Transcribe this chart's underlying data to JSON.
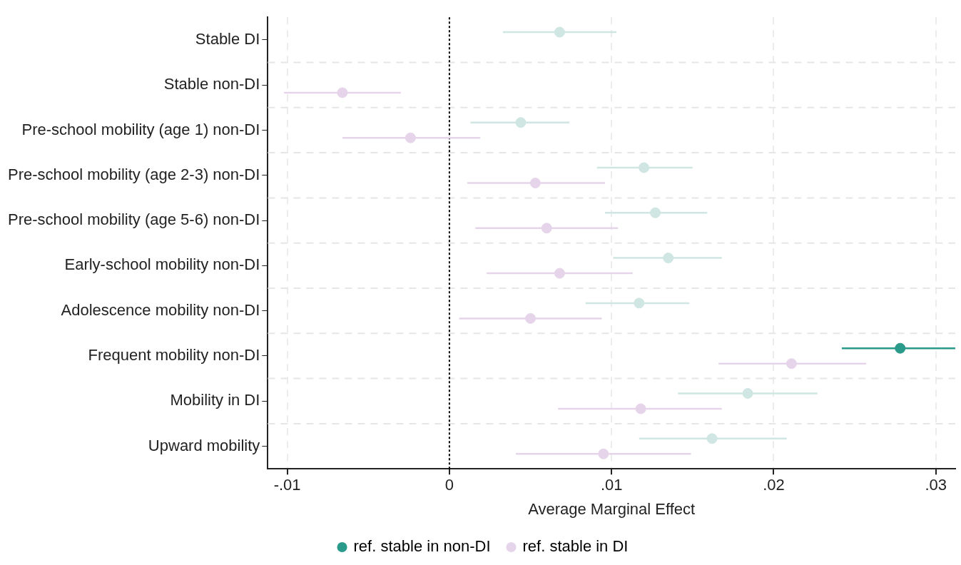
{
  "chart_data": {
    "type": "scatter",
    "orientation": "horizontal",
    "xlabel": "Average Marginal Effect",
    "categories": [
      "Stable DI",
      "Stable non-DI",
      "Pre-school mobility (age 1) non-DI",
      "Pre-school mobility (age 2-3) non-DI",
      "Pre-school mobility (age 5-6) non-DI",
      "Early-school mobility non-DI",
      "Adolescence mobility non-DI",
      "Frequent mobility non-DI",
      "Mobility in DI",
      "Upward mobility"
    ],
    "series": [
      {
        "name": "ref. stable in non-DI",
        "color": "#2a9a8a",
        "colors": [
          "#cfe6e2",
          null,
          "#cfe6e2",
          "#cfe6e2",
          "#cfe6e2",
          "#cfe6e2",
          "#cfe6e2",
          "#2a9a8a",
          "#cfe6e2",
          "#cfe6e2"
        ],
        "values": [
          0.0068,
          null,
          0.0044,
          0.012,
          0.0127,
          0.0135,
          0.0117,
          0.0278,
          0.0184,
          0.0162
        ],
        "errors": [
          [
            0.0033,
            0.0103
          ],
          null,
          [
            0.0013,
            0.0074
          ],
          [
            0.0091,
            0.015
          ],
          [
            0.0096,
            0.0159
          ],
          [
            0.0101,
            0.0168
          ],
          [
            0.0084,
            0.0148
          ],
          [
            0.0242,
            0.0312
          ],
          [
            0.0141,
            0.0227
          ],
          [
            0.0117,
            0.0208
          ]
        ]
      },
      {
        "name": "ref. stable in DI",
        "color": "#e6d5ea",
        "values": [
          null,
          -0.0066,
          -0.0024,
          0.0053,
          0.006,
          0.0068,
          0.005,
          0.0211,
          0.0118,
          0.0095
        ],
        "errors": [
          null,
          [
            -0.0102,
            -0.003
          ],
          [
            -0.0066,
            0.0019
          ],
          [
            0.0011,
            0.0096
          ],
          [
            0.0016,
            0.0104
          ],
          [
            0.0023,
            0.0113
          ],
          [
            0.0006,
            0.0094
          ],
          [
            0.0166,
            0.0257
          ],
          [
            0.0067,
            0.0168
          ],
          [
            0.0041,
            0.0149
          ]
        ]
      }
    ],
    "xlim": [
      -0.0112,
      0.0312
    ],
    "xticks": [
      {
        "value": -0.01,
        "label": "-.01"
      },
      0,
      {
        "value": 0.01,
        "label": ".01"
      },
      {
        "value": 0.02,
        "label": ".02"
      },
      {
        "value": 0.03,
        "label": ".03"
      }
    ],
    "ref_lines": [
      {
        "axis": "x",
        "value": 0,
        "color": "#000000",
        "line_style": "dotted"
      }
    ],
    "grid": true,
    "legend": "bottom",
    "marker": "circle"
  }
}
